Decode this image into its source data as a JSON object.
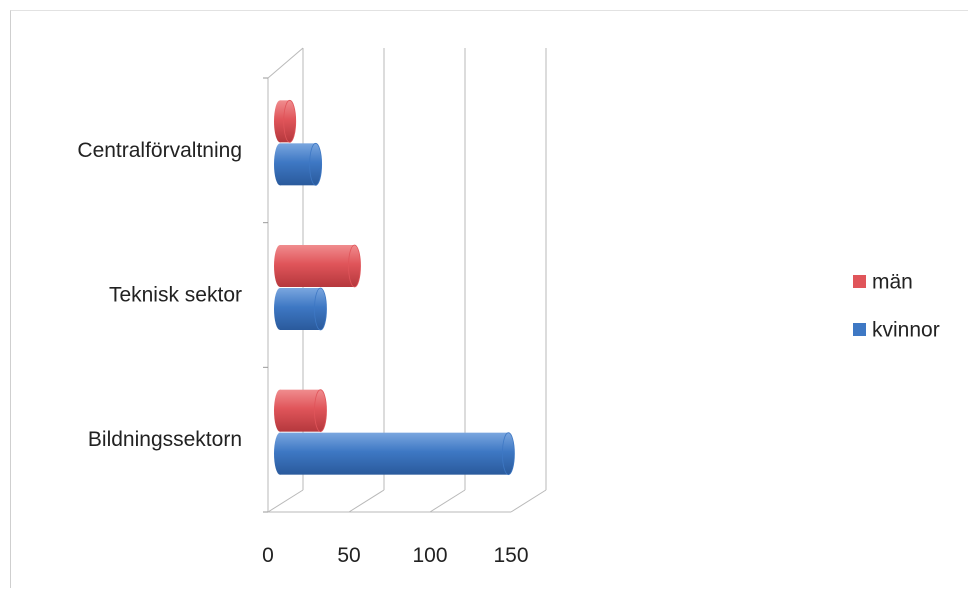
{
  "chart_data": {
    "type": "bar",
    "orientation": "horizontal",
    "categories": [
      "Centralförvaltning",
      "Teknisk sektor",
      "Bildningssektorn"
    ],
    "series": [
      {
        "name": "män",
        "color": "#e0555a",
        "values": [
          6,
          46,
          25
        ]
      },
      {
        "name": "kvinnor",
        "color": "#3e78c4",
        "values": [
          22,
          25,
          141
        ]
      }
    ],
    "xlim": [
      0,
      150
    ],
    "xticks": [
      "0",
      "50",
      "100",
      "150"
    ],
    "legend_position": "right",
    "grid": true
  }
}
